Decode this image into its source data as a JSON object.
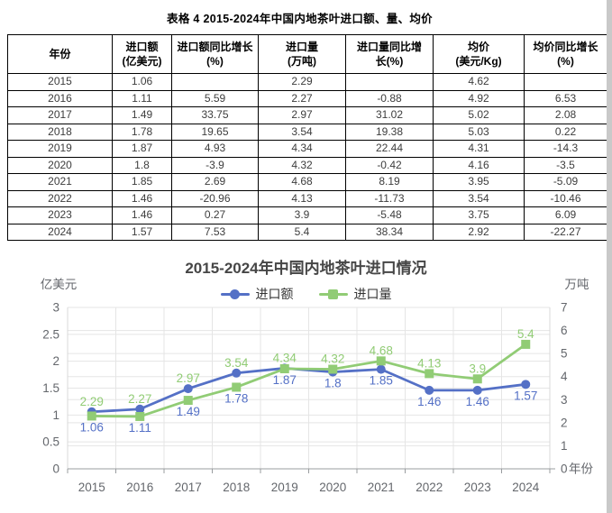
{
  "doc_title": "表格 4 2015-2024年中国内地茶叶进口额、量、均价",
  "table": {
    "columns": [
      "年份",
      "进口额\n(亿美元)",
      "进口额同比增长\n(%)",
      "进口量\n(万吨)",
      "进口量同比增\n长(%)",
      "均价\n(美元/Kg)",
      "均价同比增长\n(%)"
    ],
    "rows": [
      [
        "2015",
        "1.06",
        "",
        "2.29",
        "",
        "4.62",
        ""
      ],
      [
        "2016",
        "1.11",
        "5.59",
        "2.27",
        "-0.88",
        "4.92",
        "6.53"
      ],
      [
        "2017",
        "1.49",
        "33.75",
        "2.97",
        "31.02",
        "5.02",
        "2.08"
      ],
      [
        "2018",
        "1.78",
        "19.65",
        "3.54",
        "19.38",
        "5.03",
        "0.22"
      ],
      [
        "2019",
        "1.87",
        "4.93",
        "4.34",
        "22.44",
        "4.31",
        "-14.3"
      ],
      [
        "2020",
        "1.8",
        "-3.9",
        "4.32",
        "-0.42",
        "4.16",
        "-3.5"
      ],
      [
        "2021",
        "1.85",
        "2.69",
        "4.68",
        "8.19",
        "3.95",
        "-5.09"
      ],
      [
        "2022",
        "1.46",
        "-20.96",
        "4.13",
        "-11.73",
        "3.54",
        "-10.46"
      ],
      [
        "2023",
        "1.46",
        "0.27",
        "3.9",
        "-5.48",
        "3.75",
        "6.09"
      ],
      [
        "2024",
        "1.57",
        "7.53",
        "5.4",
        "38.34",
        "2.92",
        "-22.27"
      ]
    ]
  },
  "chart_data": {
    "type": "line",
    "title": "2015-2024年中国内地茶叶进口情况",
    "categories": [
      "2015",
      "2016",
      "2017",
      "2018",
      "2019",
      "2020",
      "2021",
      "2022",
      "2023",
      "2024"
    ],
    "series": [
      {
        "name": "进口额",
        "axis": "left",
        "marker": "circle",
        "color": "#5470c6",
        "label_position": "below",
        "values": [
          1.06,
          1.11,
          1.49,
          1.78,
          1.87,
          1.8,
          1.85,
          1.46,
          1.46,
          1.57
        ]
      },
      {
        "name": "进口量",
        "axis": "right",
        "marker": "square",
        "color": "#91cc75",
        "label_position": "above",
        "values": [
          2.29,
          2.27,
          2.97,
          3.54,
          4.34,
          4.32,
          4.68,
          4.13,
          3.9,
          5.4
        ]
      }
    ],
    "left_axis": {
      "label": "亿美元",
      "min": 0,
      "max": 3,
      "interval": 0.5
    },
    "right_axis": {
      "label": "万吨",
      "min": 0,
      "max": 7,
      "interval": 1
    },
    "x_axis_label": "年份",
    "legend_position": "top",
    "grid": true
  },
  "colors": {
    "grid_line": "#e5e5e5",
    "axis_line": "#999c9f",
    "tick_text": "#64676c",
    "side_strip": "#c9c9c9"
  }
}
